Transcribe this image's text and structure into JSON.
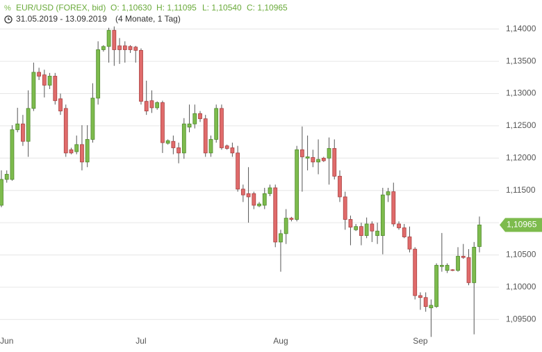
{
  "chart_data": {
    "type": "candlestick",
    "instrument": "EUR/USD (FOREX, bid)",
    "ohlc_labels": [
      "O: 1,10630",
      "H: 1,11095",
      "L: 1,10540",
      "C: 1,10965"
    ],
    "date_range": "31.05.2019 - 13.09.2019",
    "period": "(4 Monate, 1 Tag)",
    "up_color": "#7dbb4d",
    "down_color": "#e06b6b",
    "last": {
      "value": 1.10965,
      "label": "1,10965"
    },
    "ylim": [
      1.0905,
      1.1445
    ],
    "yticks": [
      {
        "value": 1.095,
        "label": "1,09500"
      },
      {
        "value": 1.1,
        "label": "1,10000"
      },
      {
        "value": 1.105,
        "label": "1,10500"
      },
      {
        "value": 1.11,
        "label": "1,11000"
      },
      {
        "value": 1.115,
        "label": "1,11500"
      },
      {
        "value": 1.12,
        "label": "1,12000"
      },
      {
        "value": 1.125,
        "label": "1,12500"
      },
      {
        "value": 1.13,
        "label": "1,13000"
      },
      {
        "value": 1.135,
        "label": "1,13500"
      },
      {
        "value": 1.14,
        "label": "1,14000"
      }
    ],
    "categories": [
      null,
      "Jun",
      null,
      null,
      null,
      null,
      null,
      null,
      null,
      null,
      null,
      null,
      null,
      null,
      null,
      null,
      null,
      null,
      null,
      null,
      null,
      null,
      null,
      null,
      null,
      null,
      "Jul",
      null,
      null,
      null,
      null,
      null,
      null,
      null,
      null,
      null,
      null,
      null,
      null,
      null,
      null,
      null,
      null,
      null,
      null,
      null,
      null,
      null,
      null,
      null,
      null,
      null,
      "Aug",
      null,
      null,
      null,
      null,
      null,
      null,
      null,
      null,
      null,
      null,
      null,
      null,
      null,
      null,
      null,
      null,
      null,
      null,
      null,
      null,
      null,
      null,
      null,
      null,
      null,
      "Sep",
      null,
      null,
      null,
      null,
      null,
      null,
      null,
      null,
      null,
      null,
      null
    ],
    "open": [
      1.1127,
      1.1167,
      1.1167,
      1.1244,
      1.1253,
      1.1226,
      1.1277,
      1.1333,
      1.1329,
      1.1313,
      1.1327,
      1.1292,
      1.1277,
      1.1213,
      1.121,
      1.1221,
      1.1194,
      1.1229,
      1.1293,
      1.1368,
      1.1373,
      1.1398,
      1.1374,
      1.1374,
      1.1373,
      1.1372,
      1.1367,
      1.1288,
      1.1289,
      1.1278,
      1.1286,
      1.1223,
      1.1226,
      1.1216,
      1.1208,
      1.1248,
      1.1253,
      1.1269,
      1.1261,
      1.1208,
      1.1229,
      1.1277,
      1.1219,
      1.1216,
      1.1208,
      1.1152,
      1.1145,
      1.1145,
      1.1126,
      1.1127,
      1.1145,
      1.1154,
      1.107,
      1.1083,
      1.1107,
      1.1105,
      1.1213,
      1.12,
      1.1201,
      1.1194,
      1.12,
      1.12,
      1.1215,
      1.1172,
      1.114,
      1.1105,
      1.1089,
      1.1094,
      1.108,
      1.1098,
      1.108,
      1.108,
      1.1143,
      1.1148,
      1.1098,
      1.1092,
      1.1078,
      1.1059,
      1.0987,
      1.0984,
      1.0968,
      1.097,
      1.1032,
      1.1026,
      1.1027,
      1.1026,
      1.1048,
      1.1046,
      1.1007,
      1.1063
    ],
    "high": [
      1.1181,
      1.1181,
      1.1251,
      1.1278,
      1.1267,
      1.1305,
      1.1348,
      1.134,
      1.1337,
      1.1332,
      1.1332,
      1.13,
      1.1283,
      1.1216,
      1.1235,
      1.1251,
      1.1251,
      1.1316,
      1.1381,
      1.1375,
      1.1402,
      1.1404,
      1.1386,
      1.1381,
      1.1375,
      1.1374,
      1.137,
      1.132,
      1.1305,
      1.1288,
      1.1289,
      1.1229,
      1.1235,
      1.1224,
      1.1262,
      1.1283,
      1.1283,
      1.1273,
      1.1267,
      1.1235,
      1.1283,
      1.1283,
      1.1221,
      1.1224,
      1.1219,
      1.1159,
      1.1186,
      1.1148,
      1.1132,
      1.1154,
      1.1159,
      1.1159,
      1.1089,
      1.1121,
      1.1109,
      1.1219,
      1.1249,
      1.1235,
      1.1213,
      1.1229,
      1.1202,
      1.1232,
      1.1229,
      1.1181,
      1.1148,
      1.1111,
      1.1098,
      1.11,
      1.1108,
      1.1102,
      1.11,
      1.1154,
      1.1154,
      1.1162,
      1.1102,
      1.1098,
      1.1094,
      1.1062,
      1.0992,
      1.0992,
      1.0981,
      1.1037,
      1.1084,
      1.1037,
      1.1028,
      1.1062,
      1.1067,
      1.1059,
      1.107,
      1.11095
    ],
    "low": [
      1.1124,
      1.1162,
      1.1165,
      1.124,
      1.1219,
      1.1202,
      1.1273,
      1.1321,
      1.1294,
      1.1307,
      1.1283,
      1.1267,
      1.1202,
      1.1206,
      1.1206,
      1.1181,
      1.1186,
      1.1224,
      1.1283,
      1.1365,
      1.1348,
      1.1343,
      1.1346,
      1.1348,
      1.1363,
      1.1348,
      1.1283,
      1.1267,
      1.127,
      1.1275,
      1.1208,
      1.1221,
      1.1206,
      1.1192,
      1.1199,
      1.124,
      1.1246,
      1.1256,
      1.1202,
      1.1202,
      1.1224,
      1.1213,
      1.1213,
      1.1202,
      1.1148,
      1.1132,
      1.11,
      1.1121,
      1.1124,
      1.1121,
      1.1141,
      1.1062,
      1.1024,
      1.1067,
      1.1102,
      1.1102,
      1.1148,
      1.1181,
      1.1186,
      1.1175,
      1.1194,
      1.1159,
      1.1167,
      1.1132,
      1.1089,
      1.1065,
      1.1087,
      1.1065,
      1.1076,
      1.107,
      1.1067,
      1.1051,
      1.1132,
      1.1094,
      1.1089,
      1.1076,
      1.1054,
      1.0981,
      1.0965,
      1.0962,
      1.0923,
      1.0968,
      1.1024,
      1.1022,
      1.1025,
      1.1024,
      1.1044,
      1.1003,
      1.0927,
      1.1054
    ],
    "close": [
      1.1167,
      1.1175,
      1.1244,
      1.1253,
      1.1226,
      1.1277,
      1.1333,
      1.1327,
      1.1313,
      1.1327,
      1.1289,
      1.1273,
      1.1208,
      1.1208,
      1.1221,
      1.1194,
      1.1229,
      1.1293,
      1.1368,
      1.1373,
      1.1398,
      1.1368,
      1.1368,
      1.1368,
      1.1368,
      1.1367,
      1.1288,
      1.1273,
      1.1278,
      1.1286,
      1.1224,
      1.1227,
      1.1216,
      1.1208,
      1.1253,
      1.1253,
      1.1269,
      1.1261,
      1.1208,
      1.1229,
      1.1277,
      1.1216,
      1.1215,
      1.1208,
      1.1152,
      1.1143,
      1.114,
      1.1127,
      1.1129,
      1.1145,
      1.1154,
      1.107,
      1.1083,
      1.1107,
      1.1105,
      1.1213,
      1.1202,
      1.1202,
      1.1194,
      1.1198,
      1.1196,
      1.1215,
      1.1172,
      1.114,
      1.1105,
      1.1093,
      1.1094,
      1.108,
      1.1098,
      1.1087,
      1.1087,
      1.1143,
      1.1148,
      1.1098,
      1.1092,
      1.1078,
      1.1059,
      1.0987,
      1.0984,
      1.097,
      1.0972,
      1.1034,
      1.1034,
      1.1034,
      1.1026,
      1.1048,
      1.1046,
      1.1007,
      1.1062,
      1.10965
    ]
  }
}
